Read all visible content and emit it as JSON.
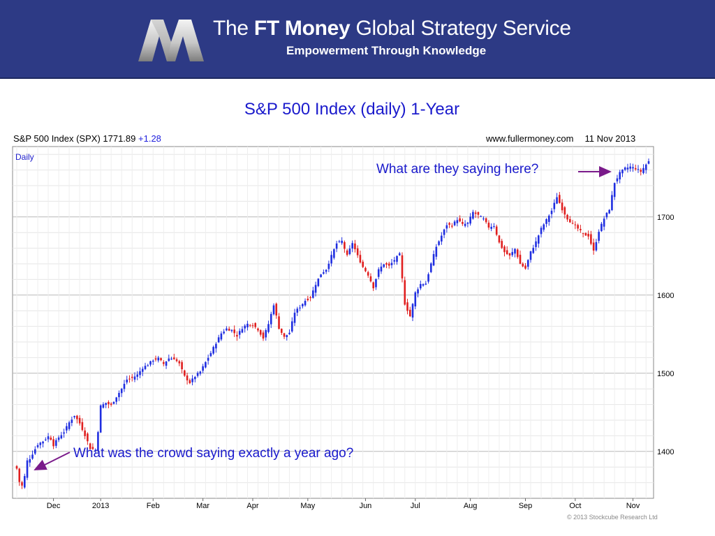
{
  "header": {
    "brand_prefix": "The",
    "brand_bold": "FT Money",
    "brand_suffix": "Global Strategy Service",
    "tagline": "Empowerment Through Knowledge"
  },
  "slide_title": "S&P 500 Index (daily) 1-Year",
  "chart_header": {
    "instrument": "S&P 500 Index (SPX) 1771.89",
    "change": "+1.28",
    "website": "www.fullermoney.com",
    "date": "11 Nov 2013"
  },
  "annotations": {
    "top": "What are they saying here?",
    "bottom": "What was the crowd saying exactly a year ago?"
  },
  "copyright": "© 2013 Stockcube Research Ltd",
  "colors": {
    "up": "#1f2ee0",
    "down": "#e01f1f",
    "banner": "#2d3a85",
    "title": "#1a1acc",
    "arrow": "#7a1a8a"
  },
  "chart_data": {
    "type": "candlestick",
    "interval_label": "Daily",
    "x_tick_labels": [
      "Dec",
      "2013",
      "Feb",
      "Mar",
      "Apr",
      "May",
      "Jun",
      "Jul",
      "Aug",
      "Sep",
      "Oct",
      "Nov"
    ],
    "x_tick_index": [
      14,
      32,
      52,
      71,
      90,
      111,
      133,
      152,
      173,
      194,
      213,
      235
    ],
    "y_ticks": [
      1400,
      1500,
      1600,
      1700
    ],
    "ylim": [
      1340,
      1790
    ],
    "n_days": 242,
    "grid": true,
    "axis_side": "right",
    "anchors": [
      [
        0,
        1378
      ],
      [
        1,
        1361
      ],
      [
        2,
        1356
      ],
      [
        3,
        1368
      ],
      [
        4,
        1388
      ],
      [
        5,
        1391
      ],
      [
        8,
        1409
      ],
      [
        10,
        1413
      ],
      [
        12,
        1419
      ],
      [
        13,
        1416
      ],
      [
        14,
        1408
      ],
      [
        16,
        1418
      ],
      [
        18,
        1425
      ],
      [
        20,
        1437
      ],
      [
        22,
        1446
      ],
      [
        24,
        1436
      ],
      [
        26,
        1421
      ],
      [
        28,
        1404
      ],
      [
        30,
        1402
      ],
      [
        31,
        1426
      ],
      [
        32,
        1458
      ],
      [
        34,
        1462
      ],
      [
        36,
        1459
      ],
      [
        38,
        1470
      ],
      [
        40,
        1480
      ],
      [
        42,
        1492
      ],
      [
        44,
        1494
      ],
      [
        46,
        1498
      ],
      [
        48,
        1507
      ],
      [
        50,
        1511
      ],
      [
        52,
        1517
      ],
      [
        54,
        1519
      ],
      [
        56,
        1512
      ],
      [
        58,
        1519
      ],
      [
        60,
        1519
      ],
      [
        62,
        1512
      ],
      [
        64,
        1496
      ],
      [
        66,
        1488
      ],
      [
        68,
        1496
      ],
      [
        70,
        1502
      ],
      [
        72,
        1514
      ],
      [
        74,
        1526
      ],
      [
        76,
        1539
      ],
      [
        78,
        1551
      ],
      [
        80,
        1557
      ],
      [
        82,
        1555
      ],
      [
        84,
        1548
      ],
      [
        86,
        1558
      ],
      [
        88,
        1563
      ],
      [
        90,
        1562
      ],
      [
        92,
        1556
      ],
      [
        94,
        1545
      ],
      [
        96,
        1563
      ],
      [
        98,
        1588
      ],
      [
        100,
        1558
      ],
      [
        102,
        1546
      ],
      [
        104,
        1552
      ],
      [
        106,
        1578
      ],
      [
        108,
        1585
      ],
      [
        110,
        1593
      ],
      [
        112,
        1597
      ],
      [
        114,
        1614
      ],
      [
        116,
        1627
      ],
      [
        118,
        1633
      ],
      [
        120,
        1650
      ],
      [
        122,
        1666
      ],
      [
        124,
        1669
      ],
      [
        126,
        1650
      ],
      [
        128,
        1667
      ],
      [
        130,
        1650
      ],
      [
        132,
        1636
      ],
      [
        134,
        1626
      ],
      [
        136,
        1610
      ],
      [
        138,
        1632
      ],
      [
        140,
        1640
      ],
      [
        142,
        1637
      ],
      [
        144,
        1645
      ],
      [
        146,
        1652
      ],
      [
        148,
        1589
      ],
      [
        150,
        1573
      ],
      [
        152,
        1603
      ],
      [
        154,
        1614
      ],
      [
        156,
        1615
      ],
      [
        158,
        1640
      ],
      [
        160,
        1662
      ],
      [
        162,
        1676
      ],
      [
        164,
        1690
      ],
      [
        166,
        1689
      ],
      [
        168,
        1697
      ],
      [
        170,
        1690
      ],
      [
        172,
        1692
      ],
      [
        174,
        1706
      ],
      [
        176,
        1702
      ],
      [
        178,
        1697
      ],
      [
        180,
        1687
      ],
      [
        182,
        1689
      ],
      [
        184,
        1667
      ],
      [
        186,
        1655
      ],
      [
        188,
        1650
      ],
      [
        190,
        1659
      ],
      [
        192,
        1640
      ],
      [
        194,
        1634
      ],
      [
        196,
        1655
      ],
      [
        198,
        1668
      ],
      [
        200,
        1685
      ],
      [
        202,
        1696
      ],
      [
        204,
        1708
      ],
      [
        206,
        1726
      ],
      [
        208,
        1710
      ],
      [
        210,
        1698
      ],
      [
        212,
        1691
      ],
      [
        214,
        1685
      ],
      [
        216,
        1678
      ],
      [
        218,
        1676
      ],
      [
        220,
        1656
      ],
      [
        222,
        1682
      ],
      [
        224,
        1698
      ],
      [
        226,
        1710
      ],
      [
        228,
        1744
      ],
      [
        230,
        1756
      ],
      [
        232,
        1762
      ],
      [
        234,
        1764
      ],
      [
        236,
        1762
      ],
      [
        238,
        1758
      ],
      [
        240,
        1767
      ],
      [
        241,
        1771
      ]
    ]
  }
}
